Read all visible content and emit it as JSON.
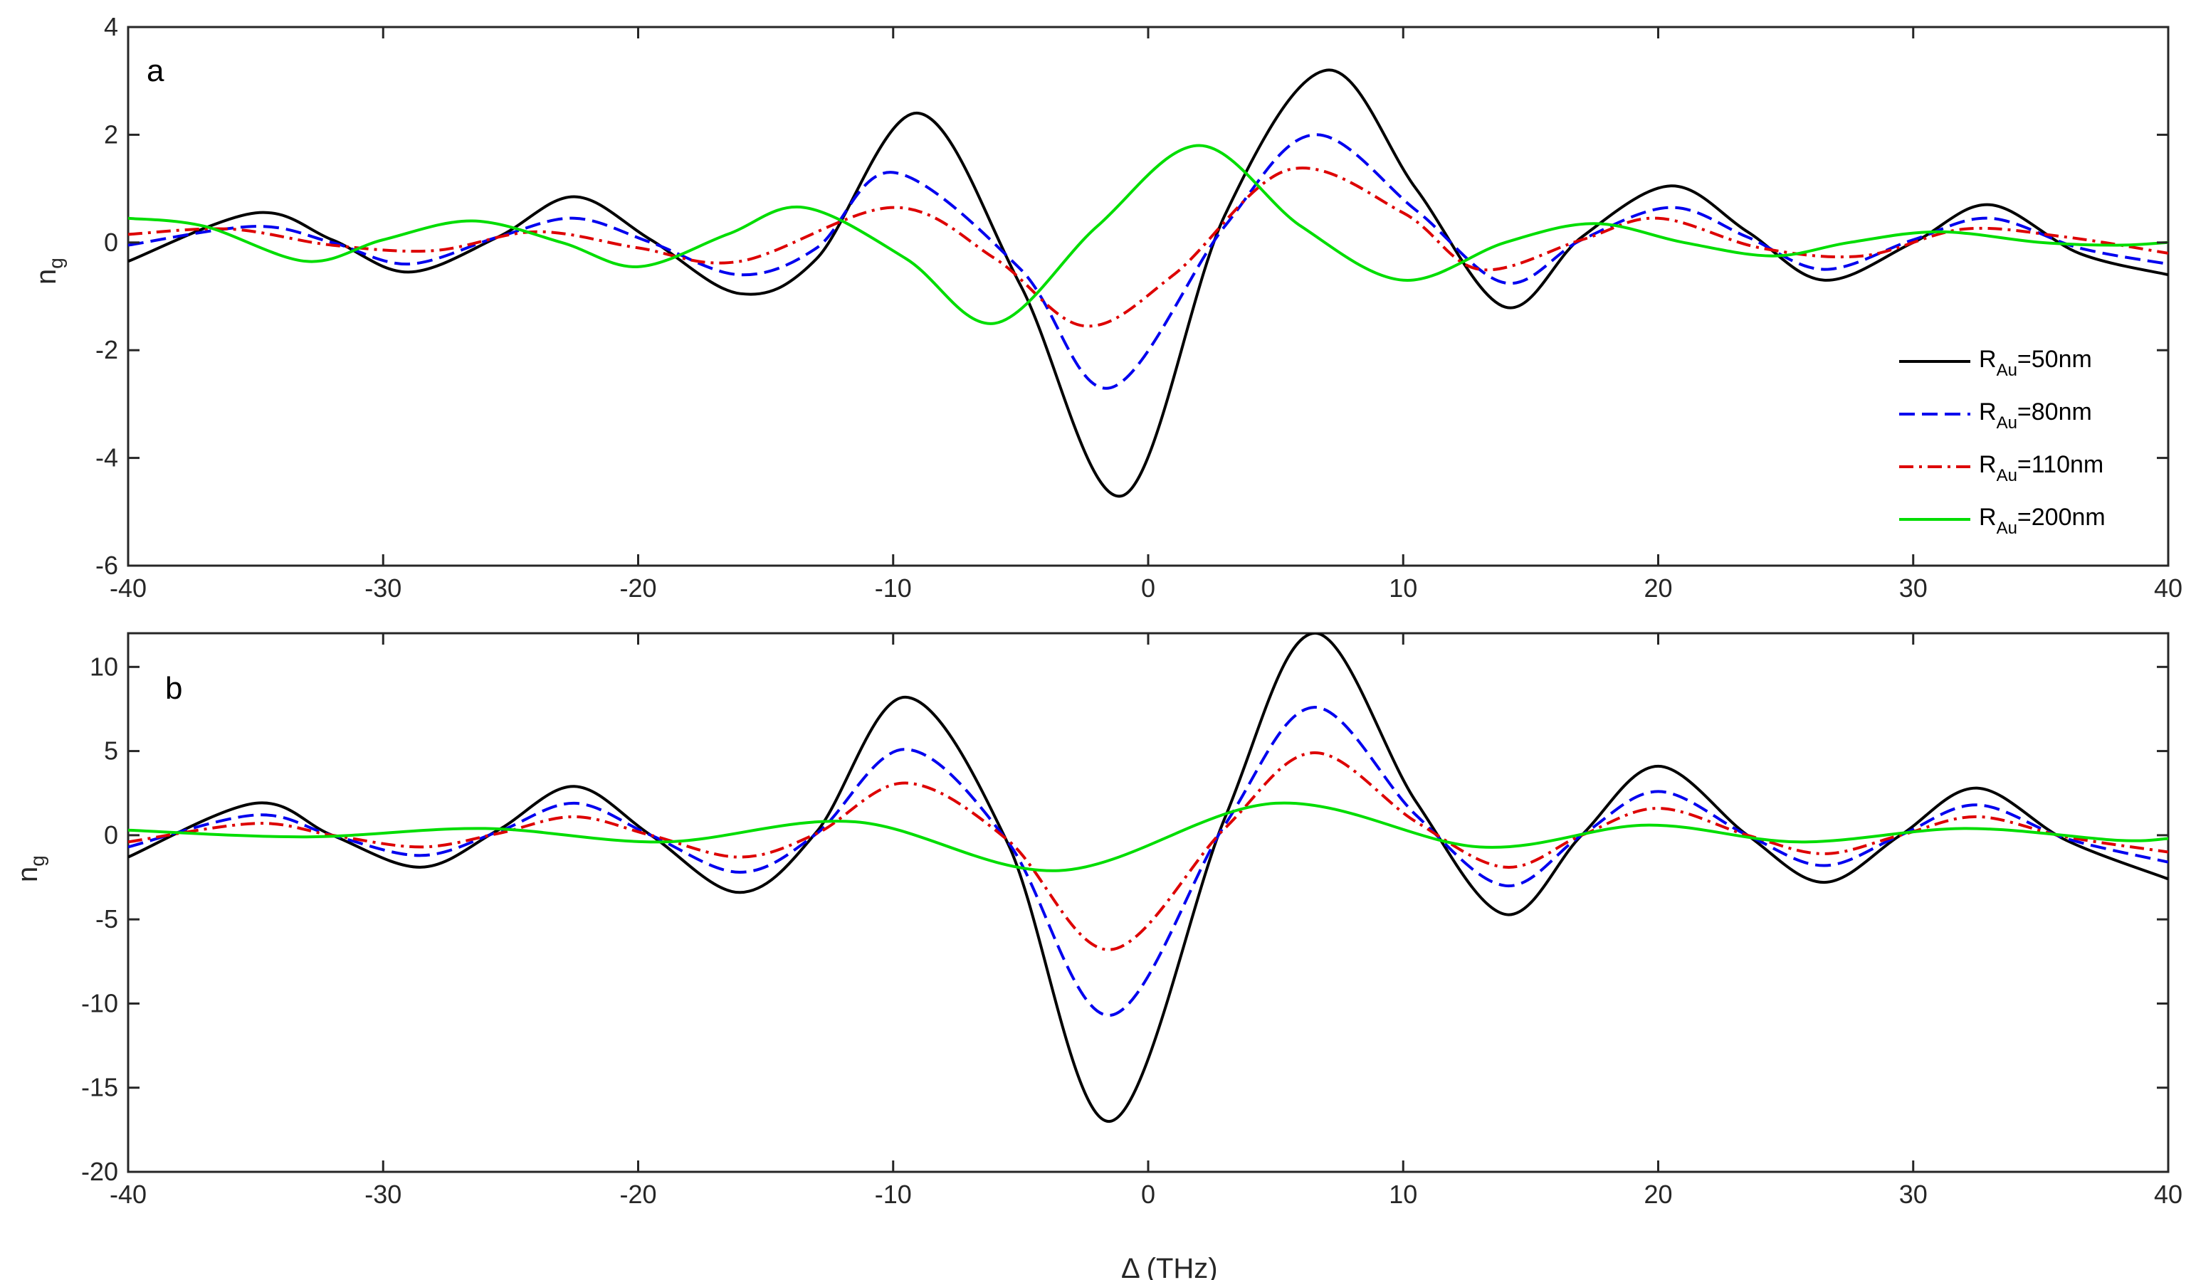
{
  "chart_data": [
    {
      "type": "line",
      "panel_label": "a",
      "ylabel": "n",
      "ylabel_sub": "g",
      "xlim": [
        -40,
        40
      ],
      "ylim": [
        -6,
        4
      ],
      "xticks": [
        -40,
        -30,
        -20,
        -10,
        0,
        10,
        20,
        30,
        40
      ],
      "yticks": [
        -6,
        -4,
        -2,
        0,
        2,
        4
      ],
      "legend_position": "right",
      "series": [
        {
          "name": "R_Au=50nm",
          "label_base": "R",
          "label_sub": "Au",
          "label_rest": "=50nm",
          "color": "#000000",
          "style": "solid",
          "x": [
            -40,
            -35,
            -32,
            -29,
            -25.5,
            -22.5,
            -19.5,
            -16,
            -13,
            -9,
            -5,
            -1,
            3,
            7,
            10.5,
            14,
            17,
            20.5,
            23.5,
            26.5,
            30,
            33,
            36.5,
            40
          ],
          "y": [
            -0.35,
            0.55,
            0.05,
            -0.55,
            0.1,
            0.85,
            0.05,
            -0.95,
            -0.3,
            2.4,
            -0.8,
            -4.7,
            0.5,
            3.2,
            1.0,
            -1.2,
            0.1,
            1.05,
            0.2,
            -0.7,
            0.0,
            0.7,
            -0.2,
            -0.6
          ]
        },
        {
          "name": "R_Au=80nm",
          "label_base": "R",
          "label_sub": "Au",
          "label_rest": "=80nm",
          "color": "#0000ee",
          "style": "dashed",
          "x": [
            -40,
            -35,
            -32,
            -29,
            -25.5,
            -22.5,
            -19.5,
            -16,
            -13,
            -10,
            -5,
            -1.5,
            3,
            6.5,
            10.5,
            14,
            17,
            20.5,
            23.5,
            26.5,
            30,
            33,
            36.5,
            40
          ],
          "y": [
            -0.05,
            0.3,
            0.0,
            -0.4,
            0.1,
            0.45,
            0.0,
            -0.6,
            -0.1,
            1.3,
            -0.5,
            -2.7,
            0.3,
            2.0,
            0.6,
            -0.75,
            0.05,
            0.65,
            0.1,
            -0.5,
            0.05,
            0.45,
            -0.1,
            -0.4
          ]
        },
        {
          "name": "R_Au=110nm",
          "label_base": "R",
          "label_sub": "Au",
          "label_rest": "=110nm",
          "color": "#dd0000",
          "style": "dashdot",
          "x": [
            -40,
            -36,
            -32,
            -28,
            -24,
            -20,
            -16,
            -10,
            -6,
            -2.5,
            1,
            5.5,
            10,
            13,
            17,
            20,
            24,
            28,
            32,
            36,
            40
          ],
          "y": [
            0.15,
            0.25,
            -0.05,
            -0.15,
            0.2,
            -0.1,
            -0.35,
            0.65,
            -0.3,
            -1.55,
            -0.6,
            1.35,
            0.55,
            -0.5,
            0.05,
            0.45,
            -0.1,
            -0.25,
            0.25,
            0.1,
            -0.2
          ]
        },
        {
          "name": "R_Au=200nm",
          "label_base": "R",
          "label_sub": "Au",
          "label_rest": "=200nm",
          "color": "#00dd00",
          "style": "solid",
          "x": [
            -40,
            -37,
            -33,
            -30,
            -26.5,
            -23,
            -20,
            -16.5,
            -13.5,
            -9.5,
            -6,
            -2,
            2,
            6,
            10,
            14,
            17.5,
            21,
            24.5,
            27.5,
            31,
            35,
            38,
            40
          ],
          "y": [
            0.45,
            0.3,
            -0.35,
            0.05,
            0.4,
            0.0,
            -0.45,
            0.15,
            0.65,
            -0.3,
            -1.5,
            0.3,
            1.8,
            0.3,
            -0.7,
            0.0,
            0.35,
            0.0,
            -0.25,
            0.0,
            0.2,
            0.0,
            -0.05,
            0.0
          ]
        }
      ]
    },
    {
      "type": "line",
      "panel_label": "b",
      "xlabel": "Δ (THz)",
      "ylabel": "n",
      "ylabel_sub": "g",
      "xlim": [
        -40,
        40
      ],
      "ylim": [
        -20,
        12
      ],
      "xticks": [
        -40,
        -30,
        -20,
        -10,
        0,
        10,
        20,
        30,
        40
      ],
      "yticks": [
        -20,
        -15,
        -10,
        -5,
        0,
        5,
        10
      ],
      "series": [
        {
          "name": "R_Au=50nm",
          "color": "#000000",
          "style": "solid",
          "x": [
            -40,
            -35,
            -32,
            -28.5,
            -25.5,
            -22.5,
            -19.5,
            -16,
            -13,
            -9.5,
            -5.5,
            -1.5,
            3,
            6.5,
            10.5,
            14,
            17,
            20,
            23.5,
            26.5,
            29.5,
            32.5,
            36,
            40
          ],
          "y": [
            -1.3,
            1.9,
            0.0,
            -1.9,
            0.3,
            2.9,
            0.0,
            -3.4,
            0.2,
            8.2,
            -0.5,
            -17.0,
            1.0,
            12.0,
            2.0,
            -4.7,
            0.0,
            4.1,
            0.0,
            -2.8,
            0.0,
            2.8,
            -0.3,
            -2.6
          ]
        },
        {
          "name": "R_Au=80nm",
          "color": "#0000ee",
          "style": "dashed",
          "x": [
            -40,
            -35,
            -32,
            -28.5,
            -25.5,
            -22.5,
            -19.5,
            -16,
            -13,
            -9.5,
            -5.5,
            -1.5,
            3,
            6.5,
            10.5,
            14,
            17,
            20,
            23.5,
            26.5,
            29.5,
            32.5,
            36,
            40
          ],
          "y": [
            -0.7,
            1.2,
            0.0,
            -1.2,
            0.2,
            1.9,
            0.0,
            -2.2,
            0.1,
            5.1,
            -0.4,
            -10.7,
            0.6,
            7.6,
            1.2,
            -3.0,
            0.0,
            2.6,
            0.0,
            -1.8,
            0.0,
            1.8,
            -0.2,
            -1.6
          ]
        },
        {
          "name": "R_Au=110nm",
          "color": "#dd0000",
          "style": "dashdot",
          "x": [
            -40,
            -35,
            -32,
            -28.5,
            -25.5,
            -22.5,
            -19.5,
            -16,
            -13,
            -9.5,
            -5.5,
            -1.5,
            3,
            6.5,
            10.5,
            14,
            17,
            20,
            23.5,
            26.5,
            29.5,
            32.5,
            36,
            40
          ],
          "y": [
            -0.4,
            0.7,
            0.0,
            -0.7,
            0.1,
            1.1,
            0.0,
            -1.3,
            0.1,
            3.1,
            -0.3,
            -6.8,
            0.4,
            4.9,
            0.8,
            -1.9,
            0.0,
            1.6,
            0.0,
            -1.1,
            0.0,
            1.1,
            -0.1,
            -1.0
          ]
        },
        {
          "name": "R_Au=200nm",
          "color": "#00dd00",
          "style": "solid",
          "x": [
            -40,
            -33,
            -26,
            -19,
            -11.5,
            -3.5,
            5,
            13,
            19.5,
            25.5,
            32,
            38,
            40
          ],
          "y": [
            0.3,
            -0.1,
            0.4,
            -0.4,
            0.8,
            -2.1,
            1.9,
            -0.7,
            0.6,
            -0.4,
            0.4,
            -0.3,
            -0.2
          ]
        }
      ]
    }
  ]
}
